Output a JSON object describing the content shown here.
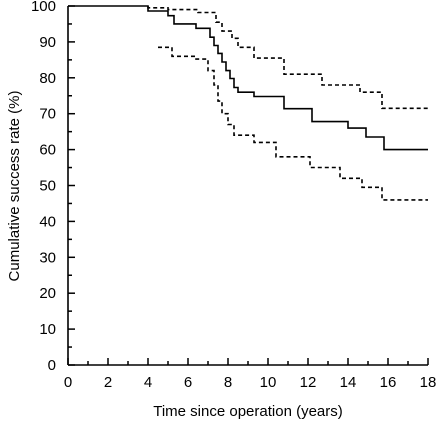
{
  "chart_data": {
    "type": "line",
    "xlabel": "Time since operation (years)",
    "ylabel": "Cumulative success rate (%)",
    "xlim": [
      0,
      18
    ],
    "ylim": [
      0,
      100
    ],
    "x_ticks": [
      0,
      2,
      4,
      6,
      8,
      10,
      12,
      14,
      16,
      18
    ],
    "y_ticks": [
      0,
      10,
      20,
      30,
      40,
      50,
      60,
      70,
      80,
      90,
      100
    ],
    "x_minor_ticks": [
      1,
      3,
      5,
      7,
      9,
      11,
      13,
      15,
      17
    ],
    "y_minor_ticks": [
      5,
      15,
      25,
      35,
      45,
      55,
      65,
      75,
      85,
      95
    ],
    "grid": false,
    "series": [
      {
        "style": "solid",
        "step": true,
        "points": [
          [
            0,
            100
          ],
          [
            4.0,
            100
          ],
          [
            4.0,
            98.6
          ],
          [
            5.0,
            98.6
          ],
          [
            5.0,
            97.3
          ],
          [
            5.3,
            97.3
          ],
          [
            5.3,
            95.0
          ],
          [
            6.4,
            95.0
          ],
          [
            6.4,
            93.8
          ],
          [
            7.1,
            93.8
          ],
          [
            7.1,
            91.3
          ],
          [
            7.3,
            91.3
          ],
          [
            7.3,
            89.0
          ],
          [
            7.5,
            89.0
          ],
          [
            7.5,
            86.8
          ],
          [
            7.7,
            86.8
          ],
          [
            7.7,
            84.4
          ],
          [
            7.9,
            84.4
          ],
          [
            7.9,
            82.0
          ],
          [
            8.1,
            82.0
          ],
          [
            8.1,
            79.8
          ],
          [
            8.3,
            79.8
          ],
          [
            8.3,
            77.3
          ],
          [
            8.5,
            77.3
          ],
          [
            8.5,
            76.0
          ],
          [
            9.3,
            76.0
          ],
          [
            9.3,
            74.8
          ],
          [
            10.8,
            74.8
          ],
          [
            10.8,
            71.4
          ],
          [
            12.2,
            71.4
          ],
          [
            12.2,
            67.8
          ],
          [
            14.0,
            67.8
          ],
          [
            14.0,
            66.0
          ],
          [
            14.9,
            66.0
          ],
          [
            14.9,
            63.5
          ],
          [
            15.8,
            63.5
          ],
          [
            15.8,
            60.0
          ],
          [
            18.0,
            60.0
          ]
        ]
      },
      {
        "style": "dashed",
        "step": true,
        "points": [
          [
            4.0,
            100
          ],
          [
            4.0,
            99.5
          ],
          [
            5.0,
            99.5
          ],
          [
            5.0,
            99.0
          ],
          [
            6.5,
            99.0
          ],
          [
            6.5,
            98.2
          ],
          [
            7.4,
            98.2
          ],
          [
            7.4,
            95.5
          ],
          [
            7.7,
            95.5
          ],
          [
            7.7,
            93.0
          ],
          [
            8.2,
            93.0
          ],
          [
            8.2,
            91.0
          ],
          [
            8.5,
            91.0
          ],
          [
            8.5,
            88.5
          ],
          [
            9.3,
            88.5
          ],
          [
            9.3,
            85.5
          ],
          [
            10.8,
            85.5
          ],
          [
            10.8,
            81.0
          ],
          [
            12.7,
            81.0
          ],
          [
            12.7,
            78.0
          ],
          [
            14.6,
            78.0
          ],
          [
            14.6,
            76.0
          ],
          [
            15.7,
            76.0
          ],
          [
            15.7,
            71.5
          ],
          [
            18.0,
            71.5
          ]
        ]
      },
      {
        "style": "dashed",
        "step": true,
        "points": [
          [
            4.5,
            88.5
          ],
          [
            5.2,
            88.5
          ],
          [
            5.2,
            86.0
          ],
          [
            6.4,
            86.0
          ],
          [
            6.4,
            85.2
          ],
          [
            7.0,
            85.2
          ],
          [
            7.0,
            82.0
          ],
          [
            7.3,
            82.0
          ],
          [
            7.3,
            78.0
          ],
          [
            7.5,
            78.0
          ],
          [
            7.5,
            73.5
          ],
          [
            7.7,
            73.5
          ],
          [
            7.7,
            70.0
          ],
          [
            8.0,
            70.0
          ],
          [
            8.0,
            67.0
          ],
          [
            8.3,
            67.0
          ],
          [
            8.3,
            64.0
          ],
          [
            9.3,
            64.0
          ],
          [
            9.3,
            62.0
          ],
          [
            10.4,
            62.0
          ],
          [
            10.4,
            58.0
          ],
          [
            12.1,
            58.0
          ],
          [
            12.1,
            55.0
          ],
          [
            13.6,
            55.0
          ],
          [
            13.6,
            52.0
          ],
          [
            14.7,
            52.0
          ],
          [
            14.7,
            49.5
          ],
          [
            15.7,
            49.5
          ],
          [
            15.7,
            46.0
          ],
          [
            18.0,
            46.0
          ]
        ]
      }
    ]
  }
}
